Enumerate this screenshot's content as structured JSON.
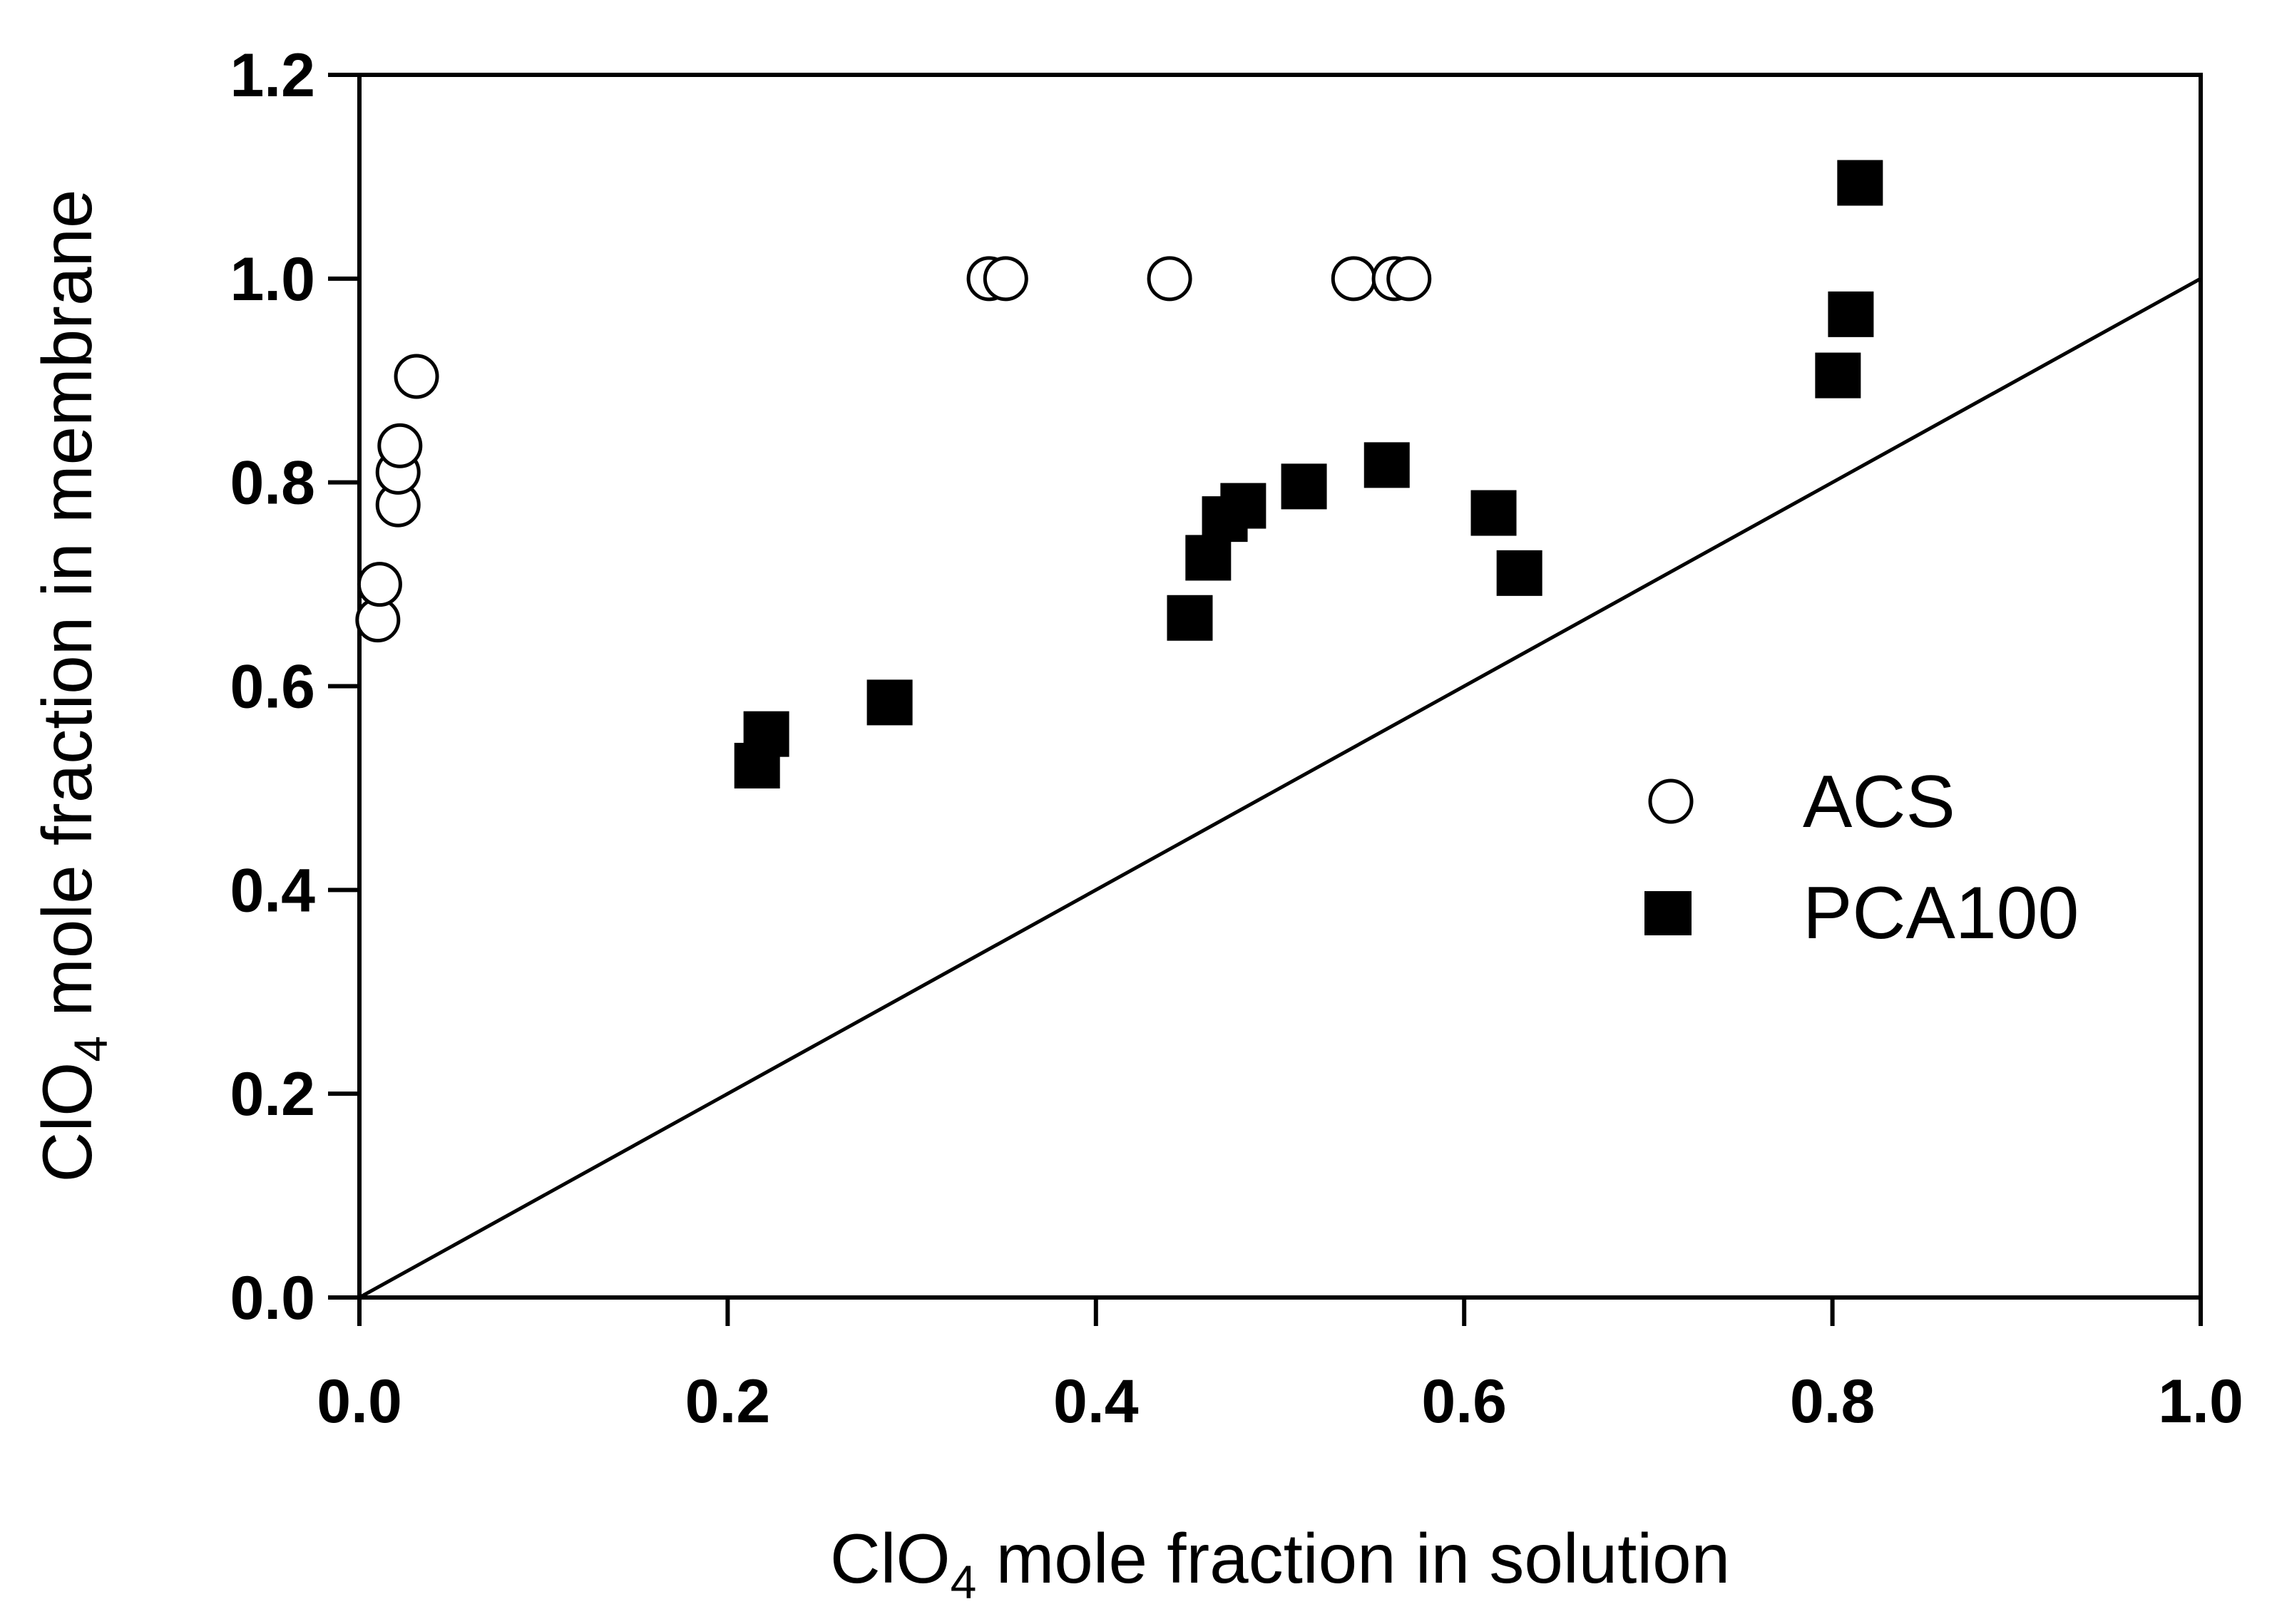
{
  "chart_data": {
    "type": "scatter",
    "title": "",
    "xlabel": {
      "base": "ClO",
      "sub": "4",
      "rest": " mole fraction in solution"
    },
    "ylabel": {
      "base": "ClO",
      "sub": "4",
      "rest": " mole fraction in membrane"
    },
    "xlim": [
      0.0,
      1.0
    ],
    "ylim": [
      0.0,
      1.2
    ],
    "xticks": [
      "0.0",
      "0.2",
      "0.4",
      "0.6",
      "0.8",
      "1.0"
    ],
    "yticks": [
      "0.0",
      "0.2",
      "0.4",
      "0.6",
      "0.8",
      "1.0",
      "1.2"
    ],
    "grid": false,
    "legend_position": "right",
    "reference_line": {
      "name": "y = x",
      "points": [
        [
          0.0,
          0.0
        ],
        [
          1.0,
          1.0
        ]
      ]
    },
    "series": [
      {
        "name": "ACS",
        "marker": "open-circle",
        "points": [
          [
            0.01,
            0.665
          ],
          [
            0.011,
            0.7
          ],
          [
            0.021,
            0.778
          ],
          [
            0.021,
            0.81
          ],
          [
            0.022,
            0.836
          ],
          [
            0.031,
            0.904
          ],
          [
            0.342,
            1.0
          ],
          [
            0.351,
            1.0
          ],
          [
            0.44,
            1.0
          ],
          [
            0.54,
            1.0
          ],
          [
            0.562,
            1.0
          ],
          [
            0.57,
            1.0
          ]
        ]
      },
      {
        "name": "PCA100",
        "marker": "filled-square",
        "points": [
          [
            0.216,
            0.522
          ],
          [
            0.221,
            0.553
          ],
          [
            0.288,
            0.584
          ],
          [
            0.451,
            0.667
          ],
          [
            0.461,
            0.726
          ],
          [
            0.47,
            0.764
          ],
          [
            0.48,
            0.777
          ],
          [
            0.513,
            0.796
          ],
          [
            0.558,
            0.817
          ],
          [
            0.616,
            0.77
          ],
          [
            0.63,
            0.711
          ],
          [
            0.803,
            0.905
          ],
          [
            0.81,
            0.965
          ],
          [
            0.815,
            1.094
          ]
        ]
      }
    ]
  }
}
